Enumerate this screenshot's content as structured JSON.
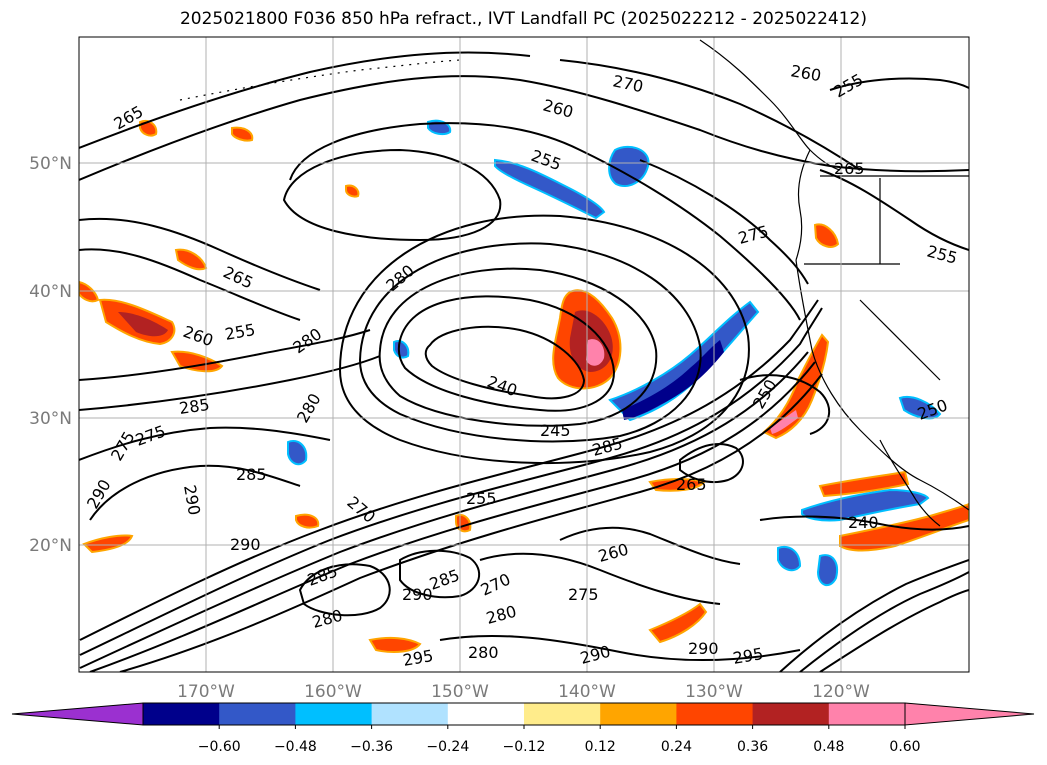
{
  "title": "2025021800 F036 850 hPa refract., IVT Landfall PC (2025022212 - 2025022412)",
  "lat_labels": [
    "50°N",
    "40°N",
    "30°N",
    "20°N"
  ],
  "lon_labels": [
    "170°W",
    "160°W",
    "150°W",
    "140°W",
    "130°W",
    "120°W"
  ],
  "colorbar": {
    "ticks": [
      "−0.60",
      "−0.48",
      "−0.36",
      "−0.24",
      "−0.12",
      "0.12",
      "0.24",
      "0.36",
      "0.48",
      "0.60"
    ],
    "colors": [
      "#9b30d0",
      "#00008b",
      "#3358c8",
      "#00bfff",
      "#b0e2ff",
      "#ffffff",
      "#ffec8b",
      "#ffa500",
      "#ff4500",
      "#b22222",
      "#ff82ab",
      "#ff82ab"
    ]
  },
  "contour_labels": [
    "270",
    "260",
    "255",
    "255",
    "265",
    "260",
    "275",
    "265",
    "265",
    "260",
    "255",
    "280",
    "280",
    "240",
    "245",
    "250",
    "250",
    "285",
    "280",
    "285",
    "275",
    "285",
    "290",
    "290",
    "290",
    "275",
    "270",
    "255",
    "265",
    "285",
    "285",
    "290",
    "270",
    "260",
    "275",
    "280",
    "290",
    "295",
    "295",
    "290",
    "240",
    "255",
    "280",
    "280"
  ],
  "colors": {
    "contour": "#000000",
    "blue_fill": "#3358c8",
    "cyan_fill": "#00bfff",
    "dark_blue_fill": "#00008b",
    "orange_fill": "#ffa500",
    "red_fill": "#ff4500",
    "dark_red_fill": "#b22222",
    "pink_fill": "#ff82ab",
    "yellow_fill": "#ffec8b",
    "grid": "#b0b0b0"
  }
}
